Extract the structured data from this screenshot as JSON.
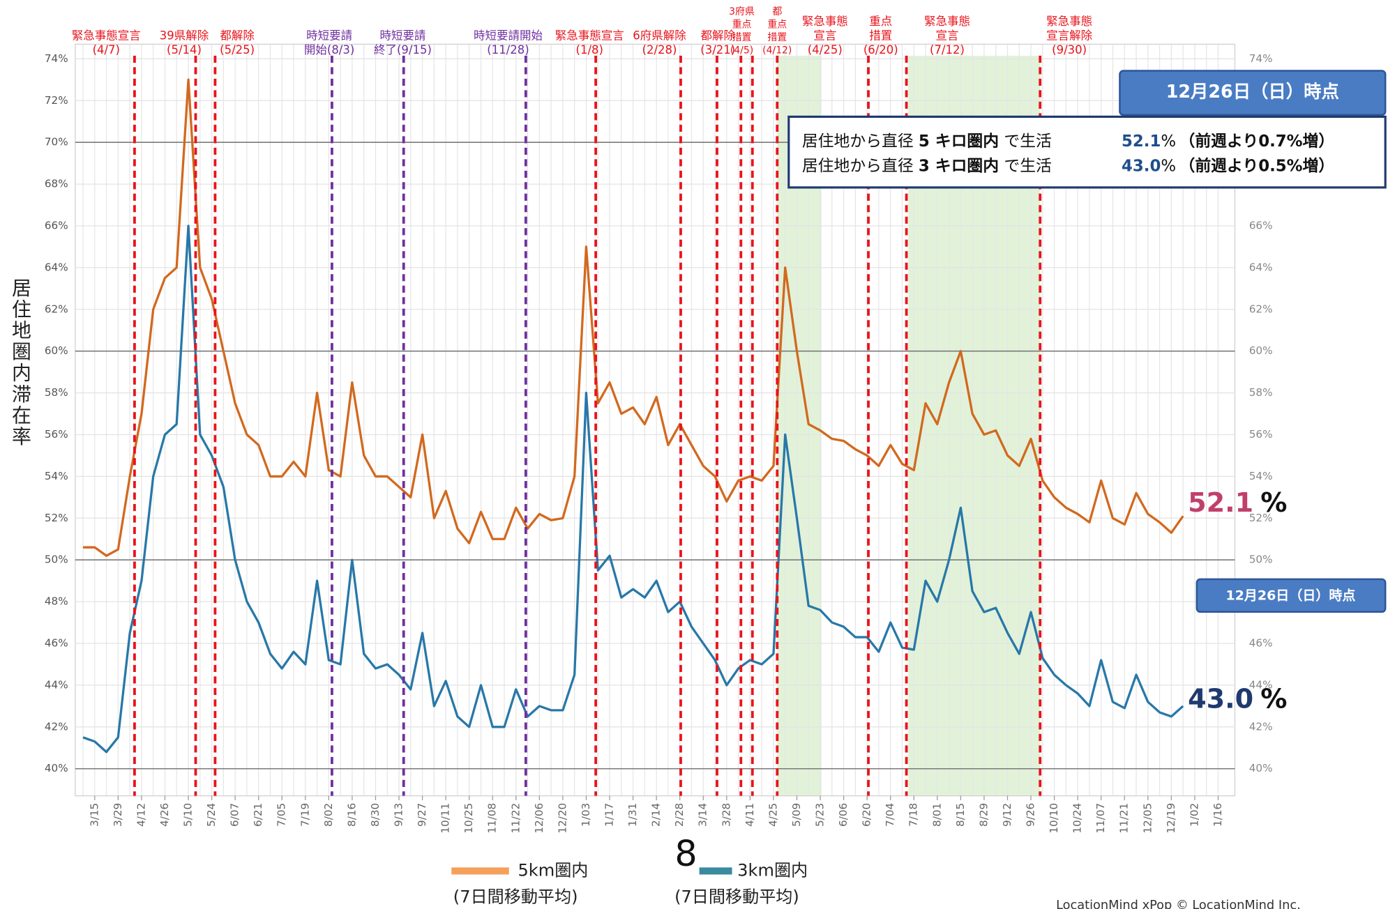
{
  "chart_data": {
    "type": "line",
    "y_axis_label": "居住地圏内滞在率",
    "categories": [
      null,
      "3/15",
      null,
      "3/29",
      null,
      "4/12",
      null,
      "4/26",
      null,
      "5/10",
      null,
      "5/24",
      null,
      "6/07",
      null,
      "6/21",
      null,
      "7/05",
      null,
      "7/19",
      null,
      "8/02",
      null,
      "8/16",
      null,
      "8/30",
      null,
      "9/13",
      null,
      "9/27",
      null,
      "10/11",
      null,
      "10/25",
      null,
      "11/08",
      null,
      "11/22",
      null,
      "12/06",
      null,
      "12/20",
      null,
      "1/03",
      null,
      "1/17",
      null,
      "1/31",
      null,
      "2/14",
      null,
      "2/28",
      null,
      "3/14",
      null,
      "3/28",
      null,
      "4/11",
      null,
      "4/25",
      null,
      "5/09",
      null,
      "5/23",
      null,
      "6/06",
      null,
      "6/20",
      null,
      "7/04",
      null,
      "7/18",
      null,
      "8/01",
      null,
      "8/15",
      null,
      "8/29",
      null,
      "9/12",
      null,
      "9/26",
      null,
      "10/10",
      null,
      "10/24",
      null,
      "11/07",
      null,
      "11/21",
      null,
      "12/05",
      null,
      "12/19",
      null,
      "1/02",
      null,
      "1/16"
    ],
    "series": [
      {
        "name": "5km圏内",
        "color": "#d2691e",
        "values": [
          50.6,
          50.6,
          50.2,
          50.5,
          54,
          57,
          62,
          63.5,
          64,
          73,
          64,
          62.5,
          60,
          57.5,
          56,
          55.5,
          54,
          54,
          54.7,
          54,
          58,
          54.3,
          54,
          58.5,
          55,
          54,
          54,
          53.5,
          53,
          56,
          52,
          53.3,
          51.5,
          50.8,
          52.3,
          51,
          51,
          52.5,
          51.5,
          52.2,
          51.9,
          52,
          54,
          65,
          57.5,
          58.5,
          57,
          57.3,
          56.5,
          57.8,
          55.5,
          56.5,
          55.5,
          54.5,
          54,
          52.8,
          53.8,
          54,
          53.8,
          54.5,
          64,
          60,
          56.5,
          56.2,
          55.8,
          55.7,
          55.3,
          55,
          54.5,
          55.5,
          54.6,
          54.3,
          57.5,
          56.5,
          58.5,
          60,
          57,
          56,
          56.2,
          55,
          54.5,
          55.8,
          53.8,
          53,
          52.5,
          52.2,
          51.8,
          53.8,
          52,
          51.7,
          53.2,
          52.2,
          51.8,
          51.3,
          52.1,
          null,
          null,
          null
        ]
      },
      {
        "name": "3km圏内",
        "color": "#2878a8",
        "values": [
          41.5,
          41.3,
          40.8,
          41.5,
          46.5,
          49,
          54,
          56,
          56.5,
          66,
          56,
          55,
          53.5,
          50,
          48,
          47,
          45.5,
          44.8,
          45.6,
          45,
          49,
          45.2,
          45,
          50,
          45.5,
          44.8,
          45,
          44.5,
          43.8,
          46.5,
          43,
          44.2,
          42.5,
          42,
          44,
          42,
          42,
          43.8,
          42.5,
          43,
          42.8,
          42.8,
          44.5,
          58,
          49.5,
          50.2,
          48.2,
          48.6,
          48.2,
          49,
          47.5,
          48,
          46.8,
          46,
          45.2,
          44,
          44.8,
          45.2,
          45,
          45.5,
          56,
          52,
          47.8,
          47.6,
          47,
          46.8,
          46.3,
          46.3,
          45.6,
          47,
          45.8,
          45.7,
          49,
          48,
          50,
          52.5,
          48.5,
          47.5,
          47.7,
          46.5,
          45.5,
          47.5,
          45.3,
          44.5,
          44,
          43.6,
          43,
          45.2,
          43.2,
          42.9,
          44.5,
          43.2,
          42.7,
          42.5,
          43.0,
          null,
          null,
          null
        ]
      }
    ],
    "legend_subtitle": "(7日間移動平均)",
    "legend_marker_text": "8",
    "ylim": [
      38.7,
      74.7
    ],
    "yticks": [
      {
        "value": 40,
        "label": "40%"
      },
      {
        "value": 42,
        "label": "42%"
      },
      {
        "value": 44,
        "label": "44%"
      },
      {
        "value": 46,
        "label": "46%"
      },
      {
        "value": 48,
        "label": "48%"
      },
      {
        "value": 50,
        "label": "50%"
      },
      {
        "value": 52,
        "label": "52%"
      },
      {
        "value": 54,
        "label": "54%"
      },
      {
        "value": 56,
        "label": "56%"
      },
      {
        "value": 58,
        "label": "58%"
      },
      {
        "value": 60,
        "label": "60%"
      },
      {
        "value": 62,
        "label": "62%"
      },
      {
        "value": 64,
        "label": "64%"
      },
      {
        "value": 66,
        "label": "66%"
      },
      {
        "value": 68,
        "label": "68%"
      },
      {
        "value": 70,
        "label": "70%"
      },
      {
        "value": 72,
        "label": "72%"
      },
      {
        "value": 74,
        "label": "74%"
      }
    ],
    "grid": true,
    "annotations": [
      {
        "lines": [
          "緊急事態宣言",
          "(4/7)"
        ],
        "color": "#e8141c"
      },
      {
        "lines": [
          "39県解除",
          "(5/14)"
        ],
        "color": "#e8141c"
      },
      {
        "lines": [
          "都解除",
          "(5/25)"
        ],
        "color": "#e8141c"
      },
      {
        "lines": [
          "時短要請",
          "開始(8/3)"
        ],
        "color": "#7030a0"
      },
      {
        "lines": [
          "時短要請",
          "終了(9/15)"
        ],
        "color": "#7030a0"
      },
      {
        "lines": [
          "時短要請開始",
          "(11/28)"
        ],
        "color": "#7030a0"
      },
      {
        "lines": [
          "緊急事態宣言",
          "(1/8)"
        ],
        "color": "#e8141c"
      },
      {
        "lines": [
          "6府県解除",
          "(2/28)"
        ],
        "color": "#e8141c"
      },
      {
        "lines": [
          "都解除",
          "(3/21)"
        ],
        "color": "#e8141c"
      },
      {
        "lines": [
          "3府県",
          "重点",
          "措置",
          "(4/5)"
        ],
        "color": "#e8141c"
      },
      {
        "lines": [
          "都",
          "重点",
          "措置",
          "(4/12)"
        ],
        "color": "#e8141c"
      },
      {
        "lines": [
          "緊急事態",
          "宣言",
          "(4/25)"
        ],
        "color": "#e8141c"
      },
      {
        "lines": [
          "重点",
          "措置",
          "(6/20)"
        ],
        "color": "#e8141c"
      },
      {
        "lines": [
          "緊急事態",
          "宣言",
          "(7/12)"
        ],
        "color": "#e8141c"
      },
      {
        "lines": [
          "緊急事態",
          "宣言解除",
          "(9/30)"
        ],
        "color": "#e8141c"
      }
    ],
    "end_labels": [
      {
        "value": "52.1",
        "unit": "%"
      },
      {
        "value": "43.0",
        "unit": "%"
      }
    ]
  },
  "info_box": {
    "header": "12月26日（日）時点",
    "rows": [
      {
        "prefix": "居住地から直径 ",
        "bold": "5 キロ圏内",
        "suffix": " で生活",
        "value": "52.1",
        "unit": "%",
        "change": "（前週より0.7%増）"
      },
      {
        "prefix": "居住地から直径 ",
        "bold": "3 キロ圏内",
        "suffix": " で生活",
        "value": "43.0",
        "unit": "%",
        "change": "（前週より0.5%増）"
      }
    ]
  },
  "second_badge": "12月26日（日）時点",
  "footer": "LocationMind xPop © LocationMind Inc."
}
